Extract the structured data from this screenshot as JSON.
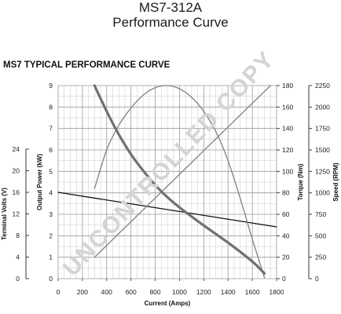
{
  "header": {
    "title_line1": "MS7-312A",
    "title_line2": "Performance Curve",
    "subtitle": "MS7 TYPICAL PERFORMANCE CURVE"
  },
  "watermark": "UNCONTROLLED COPY",
  "chart_data": {
    "type": "line",
    "title": "MS7 TYPICAL PERFORMANCE CURVE",
    "xlabel": "Current (Amps)",
    "xlim": [
      0,
      1800
    ],
    "x_ticks": [
      0,
      200,
      400,
      600,
      800,
      1000,
      1200,
      1400,
      1600,
      1800
    ],
    "grid": true,
    "axes": {
      "power": {
        "label": "Output Power (kW)",
        "range": [
          0,
          9
        ],
        "ticks": [
          0,
          1,
          2,
          3,
          4,
          5,
          6,
          7,
          8,
          9
        ]
      },
      "volts": {
        "label": "Terminal Volts (V)",
        "range": [
          0,
          24
        ],
        "ticks": [
          0,
          4,
          8,
          12,
          16,
          20,
          24
        ]
      },
      "torque": {
        "label": "Torque (Nm)",
        "range": [
          0,
          180
        ],
        "ticks": [
          0,
          20,
          40,
          60,
          80,
          100,
          120,
          140,
          160,
          180
        ]
      },
      "speed": {
        "label": "Speed (RPM)",
        "range": [
          0,
          2250
        ],
        "ticks": [
          0,
          250,
          500,
          750,
          1000,
          1250,
          1500,
          1750,
          2000,
          2250
        ]
      }
    },
    "series": [
      {
        "axis": "volts",
        "color": "#111111",
        "width": 1.3,
        "x": [
          0,
          1800
        ],
        "y": [
          16,
          9.6
        ]
      },
      {
        "axis": "power",
        "color": "#808080",
        "width": 1.3,
        "x": [
          300,
          400,
          500,
          600,
          700,
          800,
          900,
          1000,
          1100,
          1200,
          1300,
          1400,
          1500,
          1600,
          1700
        ],
        "y": [
          4.2,
          6.0,
          7.15,
          7.95,
          8.55,
          8.9,
          9.0,
          8.85,
          8.45,
          7.8,
          6.85,
          5.5,
          3.75,
          1.85,
          0.05
        ]
      },
      {
        "axis": "torque",
        "color": "#808080",
        "width": 1.3,
        "x": [
          300,
          1750
        ],
        "y": [
          20,
          180
        ]
      },
      {
        "axis": "speed",
        "color": "#707070",
        "width": 3.2,
        "x": [
          300,
          400,
          500,
          600,
          700,
          800,
          900,
          1000,
          1200,
          1400,
          1600,
          1700
        ],
        "y": [
          2250,
          1950,
          1680,
          1450,
          1260,
          1090,
          950,
          830,
          620,
          420,
          200,
          60
        ]
      }
    ]
  }
}
